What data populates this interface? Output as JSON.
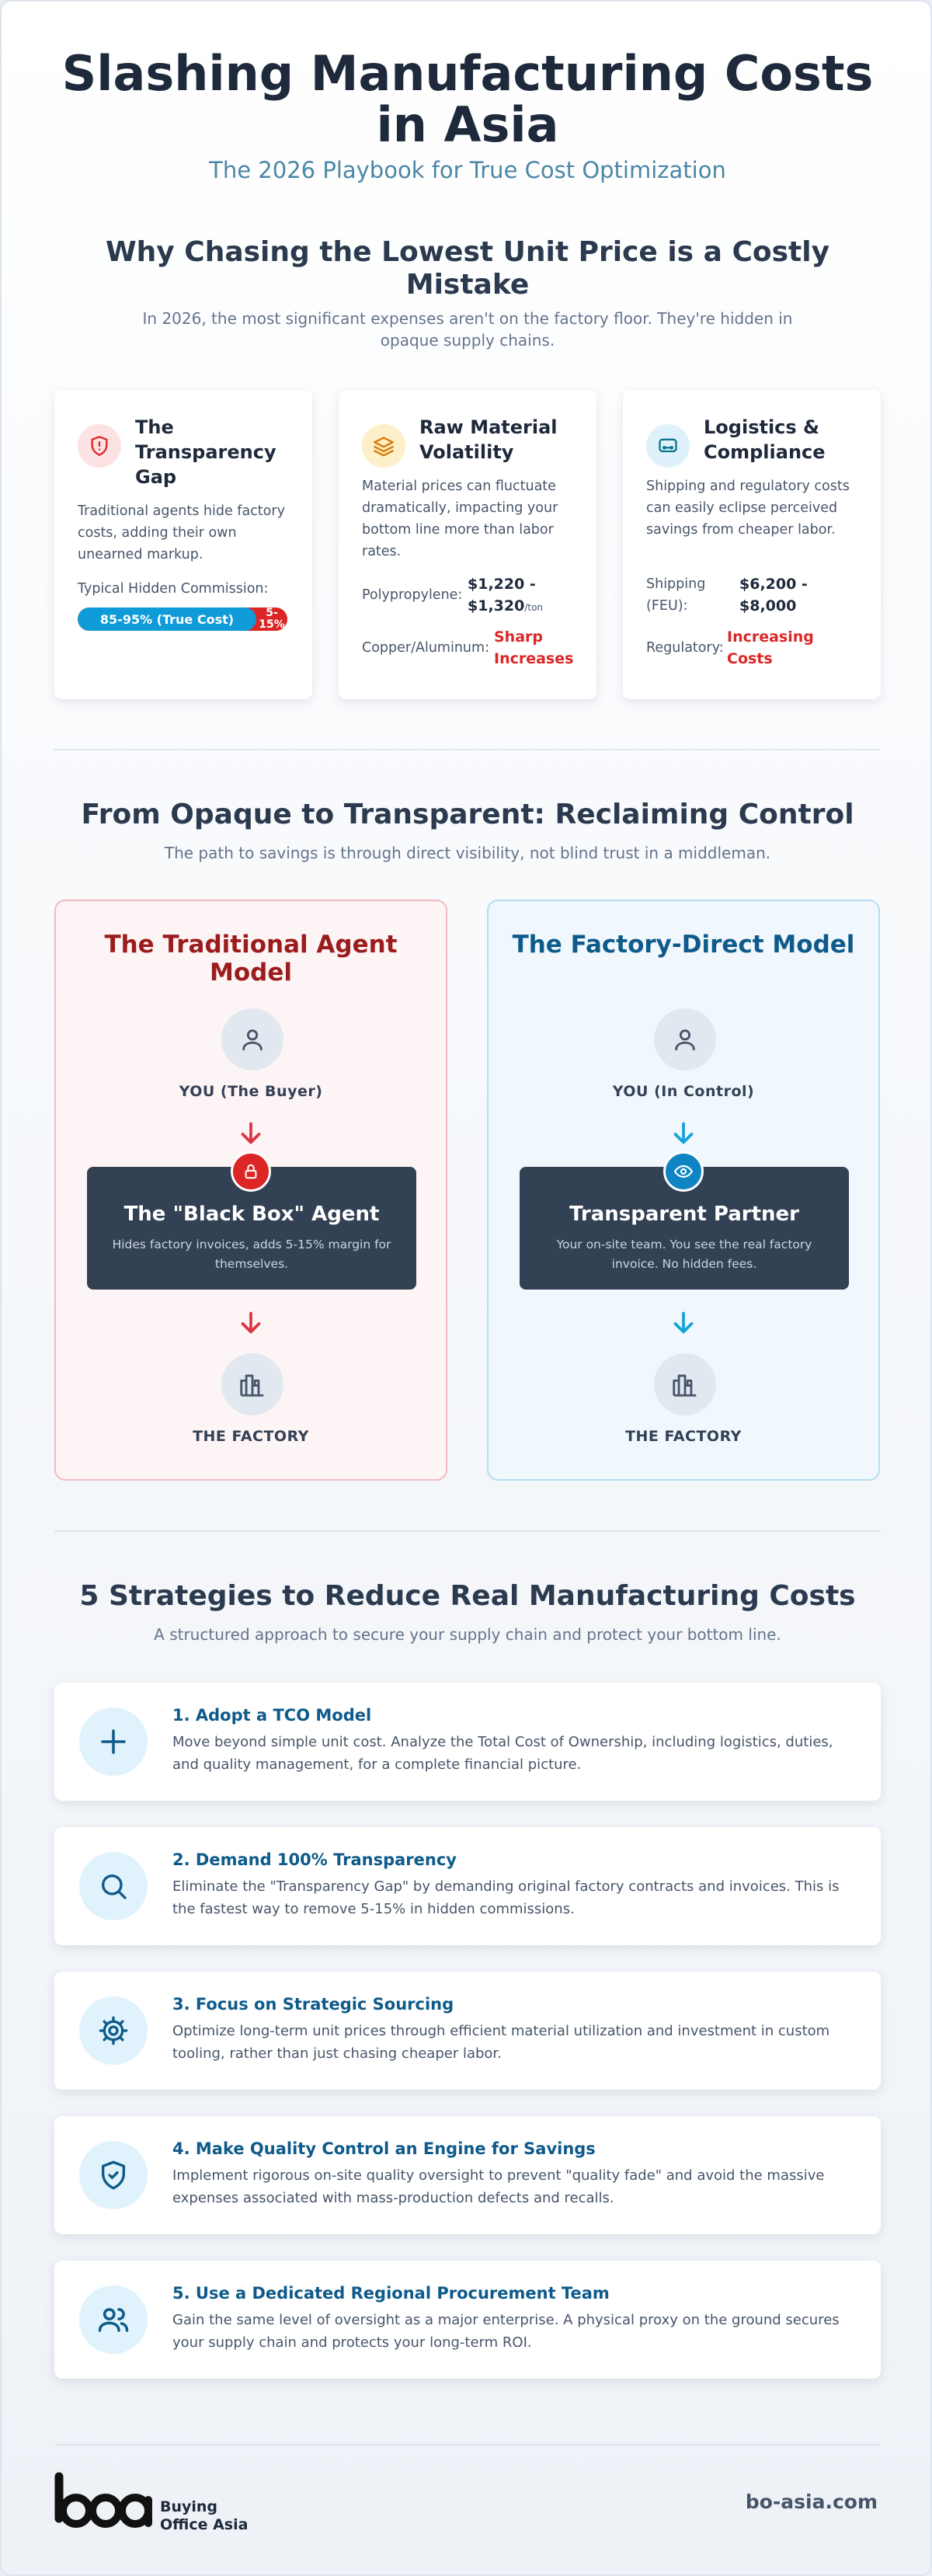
{
  "header": {
    "title": "Slashing Manufacturing Costs in Asia",
    "subtitle": "The 2026 Playbook for True Cost Optimization"
  },
  "section1": {
    "title": "Why Chasing the Lowest Unit Price is a Costly Mistake",
    "subtitle": "In 2026, the most significant expenses aren't on the factory floor. They're hidden in opaque supply chains.",
    "cards": [
      {
        "icon": "shield-alert-icon",
        "title": "The Transparency Gap",
        "text": "Traditional agents hide factory costs, adding their own unearned markup.",
        "label": "Typical Hidden Commission:",
        "bar_main": "85-95% (True Cost)",
        "bar_rest": "5-15%",
        "true_cost_fraction": 0.85
      },
      {
        "icon": "layers-icon",
        "title": "Raw Material Volatility",
        "text": "Material prices can fluctuate dramatically, impacting your bottom line more than labor rates.",
        "row1_label": "Polypropylene:",
        "row1_value": "$1,220 - $1,320",
        "row1_unit": "/ton",
        "row2_label": "Copper/Aluminum:",
        "row2_value": "Sharp Increases"
      },
      {
        "icon": "truck-icon",
        "title": "Logistics & Compliance",
        "text": "Shipping and regulatory costs can easily eclipse perceived savings from cheaper labor.",
        "row1_label": "Shipping (FEU):",
        "row1_value": "$6,200 - $8,000",
        "row2_label": "Regulatory:",
        "row2_value": "Increasing Costs"
      }
    ]
  },
  "section2": {
    "title": "From Opaque to Transparent: Reclaiming Control",
    "subtitle": "The path to savings is through direct visibility, not blind trust in a middleman.",
    "traditional": {
      "title": "The Traditional Agent Model",
      "buyer": "YOU (The Buyer)",
      "box_title": "The \"Black Box\" Agent",
      "box_desc": "Hides factory invoices, adds 5-15% margin for themselves.",
      "factory": "THE FACTORY"
    },
    "direct": {
      "title": "The Factory-Direct Model",
      "buyer": "YOU (In Control)",
      "box_title": "Transparent Partner",
      "box_desc": "Your on-site team. You see the real factory invoice. No hidden fees.",
      "factory": "THE FACTORY"
    }
  },
  "section3": {
    "title": "5 Strategies to Reduce Real Manufacturing Costs",
    "subtitle": "A structured approach to secure your supply chain and protect your bottom line.",
    "strategies": [
      {
        "icon": "plus-icon",
        "title": "1. Adopt a TCO Model",
        "desc": "Move beyond simple unit cost. Analyze the Total Cost of Ownership, including logistics, duties, and quality management, for a complete financial picture."
      },
      {
        "icon": "search-icon",
        "title": "2. Demand 100% Transparency",
        "desc": "Eliminate the \"Transparency Gap\" by demanding original factory contracts and invoices. This is the fastest way to remove 5-15% in hidden commissions."
      },
      {
        "icon": "gear-icon",
        "title": "3. Focus on Strategic Sourcing",
        "desc": "Optimize long-term unit prices through efficient material utilization and investment in custom tooling, rather than just chasing cheaper labor."
      },
      {
        "icon": "shield-check-icon",
        "title": "4. Make Quality Control an Engine for Savings",
        "desc": "Implement rigorous on-site quality oversight to prevent \"quality fade\" and avoid the massive expenses associated with mass-production defects and recalls."
      },
      {
        "icon": "users-icon",
        "title": "5. Use a Dedicated Regional Procurement Team",
        "desc": "Gain the same level of oversight as a major enterprise. A physical proxy on the ground secures your supply chain and protects your long-term ROI."
      }
    ]
  },
  "footer": {
    "logo_mark": "boa",
    "logo_line1": "Buying",
    "logo_line2": "Office Asia",
    "site": "bo-asia.com"
  },
  "colors": {
    "accent": "#0e9bd8",
    "danger": "#dc2626",
    "dark": "#334155"
  }
}
